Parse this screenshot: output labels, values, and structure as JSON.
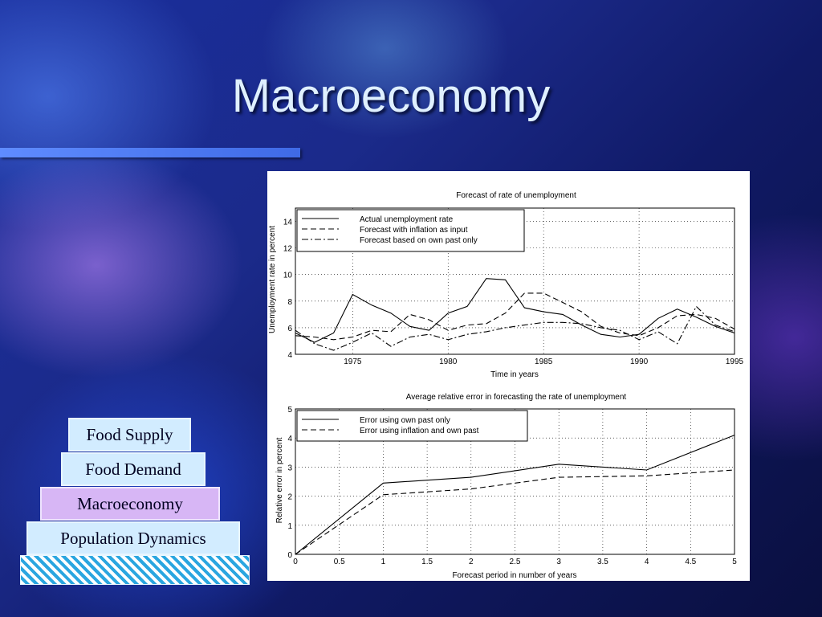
{
  "slide": {
    "title": "Macroeconomy"
  },
  "pyramid": [
    "Food Supply",
    "Food Demand",
    "Macroeconomy",
    "Population Dynamics"
  ],
  "colors": {
    "highlight": "#d7b6f5",
    "level": "#d2ecff"
  },
  "chart_data": [
    {
      "type": "line",
      "title": "Forecast of rate of unemployment",
      "xlabel": "Time in years",
      "ylabel": "Unemployment rate in percent",
      "xlim": [
        1972,
        1995
      ],
      "ylim": [
        4,
        15
      ],
      "xticks": [
        1975,
        1980,
        1985,
        1990,
        1995
      ],
      "yticks": [
        4,
        6,
        8,
        10,
        12,
        14
      ],
      "grid": true,
      "legend": "top-left",
      "series": [
        {
          "name": "Actual unemployment rate",
          "style": "solid",
          "x": [
            1972,
            1973,
            1974,
            1975,
            1976,
            1977,
            1978,
            1979,
            1980,
            1981,
            1982,
            1983,
            1984,
            1985,
            1986,
            1987,
            1988,
            1989,
            1990,
            1991,
            1992,
            1993,
            1994,
            1995
          ],
          "y": [
            5.6,
            4.9,
            5.6,
            8.5,
            7.7,
            7.1,
            6.1,
            5.8,
            7.1,
            7.6,
            9.7,
            9.6,
            7.5,
            7.2,
            7.0,
            6.2,
            5.5,
            5.3,
            5.5,
            6.7,
            7.4,
            6.8,
            6.1,
            5.6
          ]
        },
        {
          "name": "Forecast with inflation as input",
          "style": "dashed",
          "x": [
            1972,
            1973,
            1974,
            1975,
            1976,
            1977,
            1978,
            1979,
            1980,
            1981,
            1982,
            1983,
            1984,
            1985,
            1986,
            1987,
            1988,
            1989,
            1990,
            1991,
            1992,
            1993,
            1994,
            1995
          ],
          "y": [
            5.4,
            5.3,
            5.1,
            5.3,
            5.8,
            5.7,
            7.0,
            6.6,
            5.8,
            6.2,
            6.3,
            7.1,
            8.6,
            8.6,
            7.9,
            7.2,
            6.1,
            5.6,
            5.4,
            6.0,
            6.9,
            7.0,
            6.7,
            5.9
          ]
        },
        {
          "name": "Forecast based on own past only",
          "style": "dashdot",
          "x": [
            1972,
            1973,
            1974,
            1975,
            1976,
            1977,
            1978,
            1979,
            1980,
            1981,
            1982,
            1983,
            1984,
            1985,
            1986,
            1987,
            1988,
            1989,
            1990,
            1991,
            1992,
            1993,
            1994,
            1995
          ],
          "y": [
            5.8,
            4.8,
            4.3,
            4.9,
            5.6,
            4.6,
            5.3,
            5.5,
            5.1,
            5.5,
            5.7,
            6.0,
            6.2,
            6.4,
            6.4,
            6.3,
            6.0,
            5.8,
            5.1,
            5.7,
            4.8,
            7.6,
            6.2,
            5.7
          ]
        }
      ]
    },
    {
      "type": "line",
      "title": "Average relative error in forecasting the rate of unemployment",
      "xlabel": "Forecast period in number of years",
      "ylabel": "Relative error in percent",
      "xlim": [
        0,
        5
      ],
      "ylim": [
        0,
        5
      ],
      "xticks": [
        "0",
        "0.5",
        "1",
        "1.5",
        "2",
        "2.5",
        "3",
        "3.5",
        "4",
        "4.5",
        "5"
      ],
      "yticks": [
        0,
        1,
        2,
        3,
        4,
        5
      ],
      "grid": true,
      "legend": "top-left",
      "series": [
        {
          "name": "Error using own past only",
          "style": "solid",
          "x": [
            0,
            1,
            2,
            3,
            4,
            5
          ],
          "y": [
            0,
            2.45,
            2.65,
            3.1,
            2.9,
            4.1
          ]
        },
        {
          "name": "Error using inflation and own past",
          "style": "dashed",
          "x": [
            0,
            1,
            2,
            3,
            4,
            5
          ],
          "y": [
            0,
            2.05,
            2.25,
            2.65,
            2.7,
            2.9
          ]
        }
      ]
    }
  ]
}
